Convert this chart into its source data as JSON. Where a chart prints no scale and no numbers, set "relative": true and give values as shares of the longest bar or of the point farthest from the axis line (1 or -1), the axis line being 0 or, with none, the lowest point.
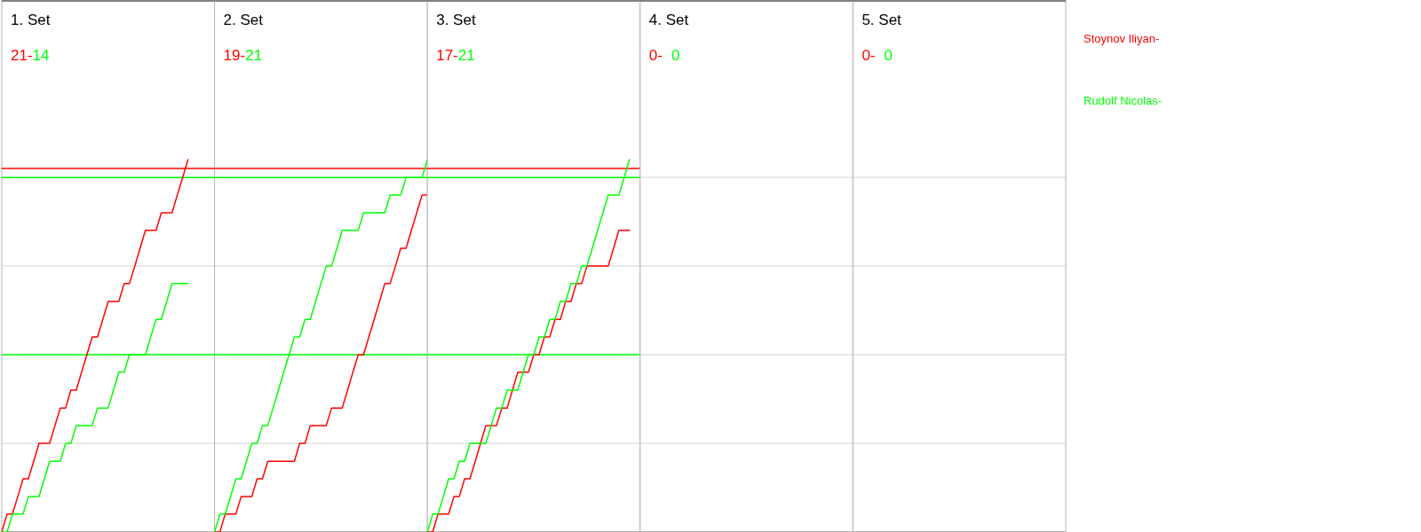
{
  "chart_data": [
    {
      "type": "line",
      "relative": true,
      "title": "1. Set",
      "annotations": [
        "21-",
        "14"
      ],
      "grid": true,
      "marker": "none",
      "categories": [
        null,
        null,
        null,
        null,
        null,
        null,
        null,
        null,
        null,
        null,
        null,
        null,
        null,
        null,
        null,
        null,
        null,
        null,
        null,
        null,
        null,
        null,
        null,
        null,
        null,
        null,
        null,
        null,
        null,
        null,
        null,
        null,
        null,
        null,
        null,
        null
      ],
      "ref_lines": [
        {
          "axis": "y",
          "value": 0.476,
          "color": "#00ff00"
        },
        {
          "axis": "y",
          "value": 0.952,
          "color": "#00ff00"
        },
        {
          "axis": "y",
          "value": 0.976,
          "color": "#ff0000"
        }
      ],
      "series": [
        {
          "name": "Stoynov Iliyan-",
          "color": "#ff0000",
          "values": [
            0,
            0.048,
            0.048,
            0.095,
            0.143,
            0.143,
            0.19,
            0.238,
            0.238,
            0.238,
            0.286,
            0.333,
            0.333,
            0.381,
            0.381,
            0.429,
            0.476,
            0.524,
            0.524,
            0.571,
            0.619,
            0.619,
            0.619,
            0.667,
            0.667,
            0.714,
            0.762,
            0.81,
            0.81,
            0.81,
            0.857,
            0.857,
            0.857,
            0.905,
            0.952,
            1
          ]
        },
        {
          "name": "Rudolf Nicolas-",
          "color": "#00ff00",
          "values": [
            0,
            0,
            0.048,
            0.048,
            0.048,
            0.095,
            0.095,
            0.095,
            0.143,
            0.19,
            0.19,
            0.19,
            0.238,
            0.238,
            0.286,
            0.286,
            0.286,
            0.286,
            0.333,
            0.333,
            0.333,
            0.381,
            0.429,
            0.429,
            0.476,
            0.476,
            0.476,
            0.476,
            0.524,
            0.571,
            0.571,
            0.619,
            0.667,
            0.667,
            0.667,
            0.667
          ]
        }
      ]
    },
    {
      "type": "line",
      "relative": true,
      "title": "2. Set",
      "annotations": [
        "19-",
        "21"
      ],
      "grid": true,
      "marker": "none",
      "categories": [
        null,
        null,
        null,
        null,
        null,
        null,
        null,
        null,
        null,
        null,
        null,
        null,
        null,
        null,
        null,
        null,
        null,
        null,
        null,
        null,
        null,
        null,
        null,
        null,
        null,
        null,
        null,
        null,
        null,
        null,
        null,
        null,
        null,
        null,
        null,
        null,
        null,
        null,
        null,
        null,
        null
      ],
      "ref_lines": [
        {
          "axis": "y",
          "value": 0.476,
          "color": "#00ff00"
        },
        {
          "axis": "y",
          "value": 0.952,
          "color": "#00ff00"
        },
        {
          "axis": "y",
          "value": 0.976,
          "color": "#ff0000"
        }
      ],
      "series": [
        {
          "color": "#ff0000",
          "values": [
            0,
            0,
            0.048,
            0.048,
            0.048,
            0.095,
            0.095,
            0.095,
            0.143,
            0.143,
            0.19,
            0.19,
            0.19,
            0.19,
            0.19,
            0.19,
            0.238,
            0.238,
            0.286,
            0.286,
            0.286,
            0.286,
            0.333,
            0.333,
            0.333,
            0.381,
            0.429,
            0.476,
            0.476,
            0.524,
            0.571,
            0.619,
            0.667,
            0.667,
            0.714,
            0.762,
            0.762,
            0.81,
            0.857,
            0.905,
            0.905
          ]
        },
        {
          "color": "#00ff00",
          "values": [
            0,
            0.048,
            0.048,
            0.095,
            0.143,
            0.143,
            0.19,
            0.238,
            0.238,
            0.286,
            0.286,
            0.333,
            0.381,
            0.429,
            0.476,
            0.524,
            0.524,
            0.571,
            0.571,
            0.619,
            0.667,
            0.714,
            0.714,
            0.762,
            0.81,
            0.81,
            0.81,
            0.81,
            0.857,
            0.857,
            0.857,
            0.857,
            0.857,
            0.905,
            0.905,
            0.905,
            0.952,
            0.952,
            0.952,
            0.952,
            1
          ]
        }
      ]
    },
    {
      "type": "line",
      "relative": true,
      "title": "3. Set",
      "annotations": [
        "17-",
        "21"
      ],
      "grid": true,
      "marker": "none",
      "categories": [
        null,
        null,
        null,
        null,
        null,
        null,
        null,
        null,
        null,
        null,
        null,
        null,
        null,
        null,
        null,
        null,
        null,
        null,
        null,
        null,
        null,
        null,
        null,
        null,
        null,
        null,
        null,
        null,
        null,
        null,
        null,
        null,
        null,
        null,
        null,
        null,
        null,
        null,
        null
      ],
      "ref_lines": [
        {
          "axis": "y",
          "value": 0.476,
          "color": "#00ff00"
        },
        {
          "axis": "y",
          "value": 0.952,
          "color": "#00ff00"
        },
        {
          "axis": "y",
          "value": 0.976,
          "color": "#ff0000"
        }
      ],
      "series": [
        {
          "color": "#ff0000",
          "values": [
            0,
            0,
            0.048,
            0.048,
            0.048,
            0.095,
            0.095,
            0.143,
            0.143,
            0.19,
            0.238,
            0.286,
            0.286,
            0.286,
            0.333,
            0.333,
            0.381,
            0.429,
            0.429,
            0.429,
            0.476,
            0.476,
            0.524,
            0.524,
            0.571,
            0.571,
            0.619,
            0.619,
            0.667,
            0.667,
            0.714,
            0.714,
            0.714,
            0.714,
            0.714,
            0.762,
            0.81,
            0.81,
            0.81
          ]
        },
        {
          "color": "#00ff00",
          "values": [
            0,
            0.048,
            0.048,
            0.095,
            0.143,
            0.143,
            0.19,
            0.19,
            0.238,
            0.238,
            0.238,
            0.238,
            0.286,
            0.333,
            0.333,
            0.381,
            0.381,
            0.381,
            0.429,
            0.476,
            0.476,
            0.524,
            0.524,
            0.571,
            0.571,
            0.619,
            0.619,
            0.667,
            0.667,
            0.714,
            0.714,
            0.762,
            0.81,
            0.857,
            0.905,
            0.905,
            0.905,
            0.952,
            1
          ]
        }
      ]
    },
    {
      "type": "other",
      "title": "4. Set",
      "annotations": [
        "0-",
        "0"
      ]
    },
    {
      "type": "other",
      "title": "5. Set",
      "annotations": [
        "0-",
        "0"
      ]
    }
  ]
}
